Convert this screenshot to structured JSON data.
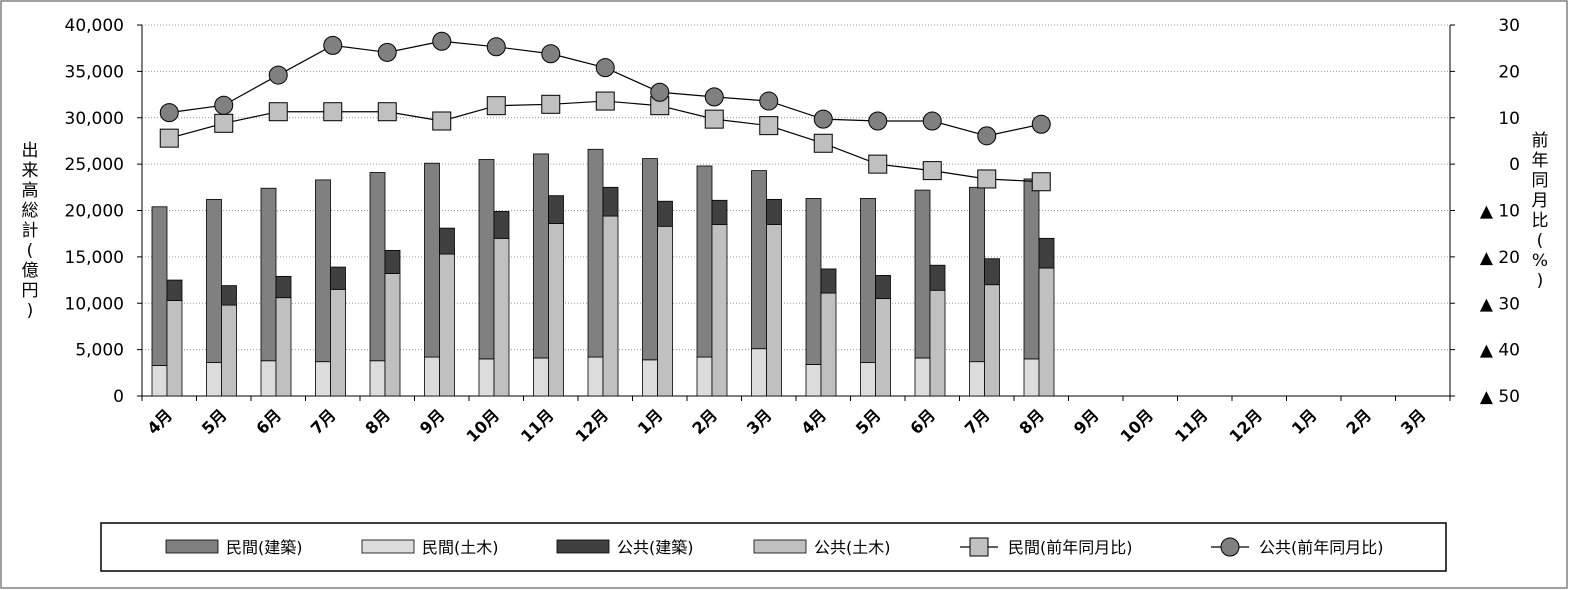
{
  "chart_data": {
    "type": "bar",
    "categories": [
      "4月",
      "5月",
      "6月",
      "7月",
      "8月",
      "9月",
      "10月",
      "11月",
      "12月",
      "1月",
      "2月",
      "3月",
      "4月",
      "5月",
      "6月",
      "7月",
      "8月",
      "9月",
      "10月",
      "11月",
      "12月",
      "1月",
      "2月",
      "3月"
    ],
    "ylabel_left": [
      "出",
      "来",
      "高",
      "総",
      "計",
      "(",
      "億",
      "円",
      ")"
    ],
    "ylabel_right": [
      "前",
      "年",
      "同",
      "月",
      "比",
      "(",
      "%",
      ")"
    ],
    "ylim": [
      0,
      40000
    ],
    "y_ticks": [
      0,
      5000,
      10000,
      15000,
      20000,
      25000,
      30000,
      35000,
      40000
    ],
    "y_tick_labels": [
      "0",
      "5,000",
      "10,000",
      "15,000",
      "20,000",
      "25,000",
      "30,000",
      "35,000",
      "40,000"
    ],
    "y2lim": [
      -50,
      30
    ],
    "y2_ticks": [
      30,
      20,
      10,
      0,
      -10,
      -20,
      -30,
      -40,
      -50
    ],
    "y2_tick_labels": [
      "30",
      "20",
      "10",
      "0",
      "▲ 10",
      "▲ 20",
      "▲ 30",
      "▲ 40",
      "▲ 50"
    ],
    "stacks": [
      {
        "name": "民間",
        "series": [
          {
            "name": "民間(土木)",
            "color": "#dcdcdc",
            "values": [
              3300,
              3600,
              3800,
              3700,
              3800,
              4200,
              4000,
              4100,
              4200,
              3900,
              4200,
              5100,
              3400,
              3600,
              4100,
              3700,
              4000
            ]
          },
          {
            "name": "民間(建築)",
            "color": "#808080",
            "values": [
              17100,
              17600,
              18600,
              19600,
              20300,
              20900,
              21500,
              22000,
              22400,
              21700,
              20600,
              19200,
              17900,
              17700,
              18100,
              18800,
              19400
            ]
          }
        ]
      },
      {
        "name": "公共",
        "series": [
          {
            "name": "公共(土木)",
            "color": "#c0c0c0",
            "values": [
              10300,
              9800,
              10600,
              11500,
              13200,
              15300,
              17000,
              18600,
              19400,
              18300,
              18500,
              18500,
              11100,
              10500,
              11400,
              12000,
              13800
            ]
          },
          {
            "name": "公共(建築)",
            "color": "#404040",
            "values": [
              2200,
              2100,
              2300,
              2400,
              2500,
              2800,
              2900,
              3000,
              3100,
              2700,
              2600,
              2700,
              2600,
              2500,
              2700,
              2800,
              3200
            ]
          }
        ]
      }
    ],
    "lines": [
      {
        "name": "民間(前年同月比)",
        "marker": "square",
        "color": "#c0c0c0",
        "values": [
          5.6,
          8.8,
          11.3,
          11.3,
          11.3,
          9.3,
          12.6,
          12.9,
          13.6,
          12.6,
          9.7,
          8.3,
          4.5,
          0,
          -1.4,
          -3.2,
          -3.8
        ]
      },
      {
        "name": "公共(前年同月比)",
        "marker": "circle",
        "color": "#808080",
        "values": [
          11.1,
          12.7,
          19.2,
          25.6,
          24.1,
          26.5,
          25.3,
          23.8,
          20.8,
          15.5,
          14.5,
          13.6,
          9.7,
          9.3,
          9.3,
          6.1,
          8.6
        ]
      }
    ],
    "grid": true,
    "legend_position": "bottom",
    "legend": [
      {
        "label": "民間(建築)",
        "kind": "bar",
        "color": "#808080"
      },
      {
        "label": "民間(土木)",
        "kind": "bar",
        "color": "#dcdcdc"
      },
      {
        "label": "公共(建築)",
        "kind": "bar",
        "color": "#404040"
      },
      {
        "label": "公共(土木)",
        "kind": "bar",
        "color": "#c0c0c0"
      },
      {
        "label": "民間(前年同月比)",
        "kind": "line-square",
        "color": "#c0c0c0"
      },
      {
        "label": "公共(前年同月比)",
        "kind": "line-circle",
        "color": "#808080"
      }
    ]
  }
}
